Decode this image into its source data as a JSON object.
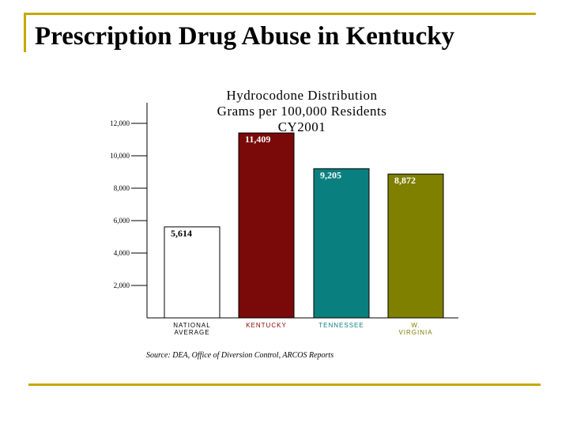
{
  "slide": {
    "title": "Prescription Drug Abuse in Kentucky",
    "accent_color": "#c8a800"
  },
  "chart_data": {
    "type": "bar",
    "title_lines": [
      "Hydrocodone Distribution",
      "Grams per 100,000 Residents",
      "CY2001"
    ],
    "categories": [
      [
        "NATIONAL",
        "AVERAGE"
      ],
      [
        "KENTUCKY"
      ],
      [
        "TENNESSEE"
      ],
      [
        "W.",
        "VIRGINIA"
      ]
    ],
    "values": [
      5614,
      11409,
      9205,
      8872
    ],
    "value_labels": [
      "5,614",
      "11,409",
      "9,205",
      "8,872"
    ],
    "bar_colors": [
      "#ffffff",
      "#7a0a0a",
      "#0a7f7f",
      "#7f7f00"
    ],
    "label_colors": [
      "#000000",
      "#ffffff",
      "#ffffff",
      "#ffffff"
    ],
    "category_colors": [
      "#000000",
      "#8b0000",
      "#0a7f7f",
      "#7f7f00"
    ],
    "yticks": [
      2000,
      4000,
      6000,
      8000,
      10000,
      12000
    ],
    "ytick_labels": [
      "2,000",
      "4,000",
      "6,000",
      "8,000",
      "10,000",
      "12,000"
    ],
    "ylim": [
      0,
      12000
    ],
    "source": "Source: DEA, Office of Diversion Control, ARCOS Reports",
    "grid": false
  }
}
